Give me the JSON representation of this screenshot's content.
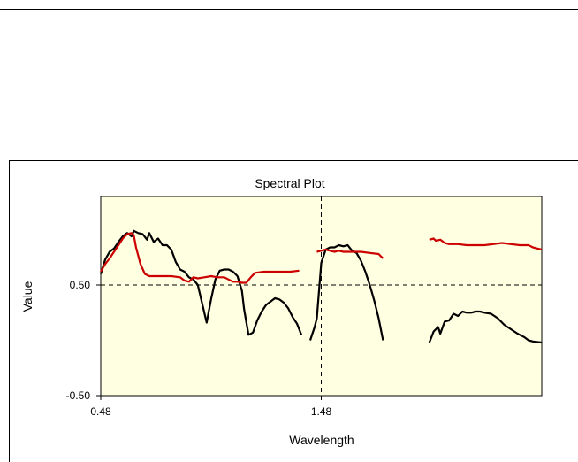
{
  "chart_data": {
    "type": "line",
    "title": "Spectral Plot",
    "xlabel": "Wavelength",
    "ylabel": "Value",
    "xlim": [
      0.48,
      2.48
    ],
    "ylim": [
      -0.5,
      1.3
    ],
    "x_ticks": [
      {
        "value": 0.48,
        "label": "0.48"
      },
      {
        "value": 1.48,
        "label": "1.48"
      }
    ],
    "y_ticks": [
      {
        "value": 0.5,
        "label": "0.50"
      },
      {
        "value": -0.5,
        "label": "-0.50"
      }
    ],
    "reference_lines": {
      "x": 1.48,
      "y": 0.5,
      "style": "dashed"
    },
    "plot_background": "#ffffe1",
    "series": [
      {
        "color": "#000000",
        "segments": [
          [
            [
              0.48,
              0.6
            ],
            [
              0.5,
              0.73
            ],
            [
              0.52,
              0.8
            ],
            [
              0.54,
              0.83
            ],
            [
              0.56,
              0.89
            ],
            [
              0.58,
              0.94
            ],
            [
              0.6,
              0.97
            ],
            [
              0.62,
              0.94
            ],
            [
              0.63,
              0.99
            ],
            [
              0.65,
              0.97
            ],
            [
              0.67,
              0.96
            ],
            [
              0.69,
              0.91
            ],
            [
              0.7,
              0.97
            ],
            [
              0.72,
              0.89
            ],
            [
              0.74,
              0.92
            ],
            [
              0.76,
              0.86
            ],
            [
              0.78,
              0.86
            ],
            [
              0.8,
              0.82
            ],
            [
              0.82,
              0.71
            ],
            [
              0.84,
              0.64
            ],
            [
              0.86,
              0.62
            ],
            [
              0.88,
              0.57
            ],
            [
              0.9,
              0.55
            ],
            [
              0.92,
              0.5
            ],
            [
              0.94,
              0.33
            ],
            [
              0.96,
              0.16
            ],
            [
              0.98,
              0.37
            ],
            [
              1.0,
              0.55
            ],
            [
              1.02,
              0.63
            ],
            [
              1.04,
              0.64
            ],
            [
              1.06,
              0.64
            ],
            [
              1.08,
              0.62
            ],
            [
              1.1,
              0.58
            ],
            [
              1.12,
              0.45
            ],
            [
              1.13,
              0.28
            ],
            [
              1.15,
              0.05
            ],
            [
              1.17,
              0.07
            ],
            [
              1.19,
              0.18
            ],
            [
              1.21,
              0.26
            ],
            [
              1.23,
              0.32
            ],
            [
              1.25,
              0.35
            ],
            [
              1.27,
              0.38
            ],
            [
              1.29,
              0.37
            ],
            [
              1.31,
              0.34
            ],
            [
              1.33,
              0.29
            ],
            [
              1.35,
              0.21
            ],
            [
              1.37,
              0.15
            ],
            [
              1.39,
              0.05
            ]
          ],
          [
            [
              1.43,
              0.0
            ],
            [
              1.45,
              0.12
            ],
            [
              1.46,
              0.2
            ],
            [
              1.47,
              0.45
            ],
            [
              1.48,
              0.7
            ],
            [
              1.5,
              0.82
            ],
            [
              1.52,
              0.84
            ],
            [
              1.54,
              0.84
            ],
            [
              1.56,
              0.86
            ],
            [
              1.58,
              0.85
            ],
            [
              1.6,
              0.86
            ],
            [
              1.62,
              0.81
            ],
            [
              1.64,
              0.79
            ],
            [
              1.66,
              0.72
            ],
            [
              1.68,
              0.62
            ],
            [
              1.7,
              0.5
            ],
            [
              1.72,
              0.36
            ],
            [
              1.74,
              0.2
            ],
            [
              1.76,
              0.0
            ]
          ],
          [
            [
              1.97,
              -0.02
            ],
            [
              1.99,
              0.08
            ],
            [
              2.01,
              0.12
            ],
            [
              2.02,
              0.06
            ],
            [
              2.04,
              0.17
            ],
            [
              2.06,
              0.18
            ],
            [
              2.08,
              0.24
            ],
            [
              2.1,
              0.22
            ],
            [
              2.12,
              0.26
            ],
            [
              2.14,
              0.25
            ],
            [
              2.16,
              0.25
            ],
            [
              2.18,
              0.26
            ],
            [
              2.2,
              0.26
            ],
            [
              2.22,
              0.25
            ],
            [
              2.25,
              0.24
            ],
            [
              2.28,
              0.2
            ],
            [
              2.31,
              0.14
            ],
            [
              2.34,
              0.1
            ],
            [
              2.37,
              0.06
            ],
            [
              2.4,
              0.03
            ],
            [
              2.42,
              0.0
            ],
            [
              2.44,
              -0.01
            ],
            [
              2.48,
              -0.02
            ]
          ]
        ]
      },
      {
        "color": "#cc0000",
        "segments": [
          [
            [
              0.48,
              0.62
            ],
            [
              0.5,
              0.69
            ],
            [
              0.52,
              0.74
            ],
            [
              0.54,
              0.8
            ],
            [
              0.56,
              0.86
            ],
            [
              0.58,
              0.92
            ],
            [
              0.6,
              0.96
            ],
            [
              0.62,
              0.97
            ],
            [
              0.63,
              0.95
            ],
            [
              0.64,
              0.84
            ],
            [
              0.66,
              0.69
            ],
            [
              0.68,
              0.6
            ],
            [
              0.7,
              0.58
            ],
            [
              0.72,
              0.58
            ],
            [
              0.76,
              0.58
            ],
            [
              0.8,
              0.58
            ],
            [
              0.84,
              0.57
            ],
            [
              0.86,
              0.54
            ],
            [
              0.88,
              0.53
            ],
            [
              0.9,
              0.57
            ],
            [
              0.92,
              0.56
            ],
            [
              0.95,
              0.57
            ],
            [
              0.98,
              0.58
            ],
            [
              1.01,
              0.57
            ],
            [
              1.04,
              0.57
            ],
            [
              1.06,
              0.55
            ],
            [
              1.08,
              0.53
            ],
            [
              1.1,
              0.53
            ],
            [
              1.12,
              0.52
            ],
            [
              1.14,
              0.52
            ],
            [
              1.16,
              0.57
            ],
            [
              1.18,
              0.61
            ],
            [
              1.22,
              0.62
            ],
            [
              1.26,
              0.62
            ],
            [
              1.3,
              0.62
            ],
            [
              1.34,
              0.62
            ],
            [
              1.38,
              0.63
            ]
          ],
          [
            [
              1.46,
              0.8
            ],
            [
              1.48,
              0.81
            ],
            [
              1.5,
              0.82
            ],
            [
              1.52,
              0.81
            ],
            [
              1.54,
              0.8
            ],
            [
              1.56,
              0.81
            ],
            [
              1.58,
              0.8
            ],
            [
              1.62,
              0.8
            ],
            [
              1.66,
              0.8
            ],
            [
              1.7,
              0.79
            ],
            [
              1.74,
              0.78
            ],
            [
              1.76,
              0.74
            ]
          ],
          [
            [
              1.97,
              0.91
            ],
            [
              1.99,
              0.92
            ],
            [
              2.0,
              0.9
            ],
            [
              2.02,
              0.91
            ],
            [
              2.04,
              0.88
            ],
            [
              2.06,
              0.87
            ],
            [
              2.1,
              0.87
            ],
            [
              2.14,
              0.86
            ],
            [
              2.18,
              0.86
            ],
            [
              2.22,
              0.86
            ],
            [
              2.26,
              0.87
            ],
            [
              2.3,
              0.88
            ],
            [
              2.34,
              0.87
            ],
            [
              2.38,
              0.86
            ],
            [
              2.42,
              0.86
            ],
            [
              2.44,
              0.84
            ],
            [
              2.46,
              0.83
            ],
            [
              2.48,
              0.82
            ]
          ]
        ]
      }
    ]
  }
}
